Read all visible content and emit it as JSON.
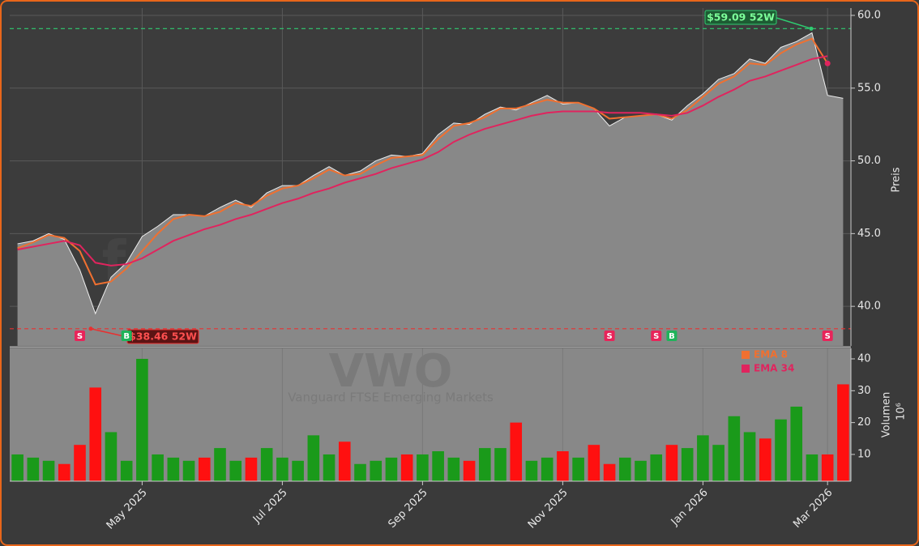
{
  "chart_data": [
    {
      "type": "area",
      "title": "VWO",
      "subtitle": "Vanguard FTSE Emerging Markets",
      "watermark": "forexsignale.trade",
      "categories": [
        null,
        null,
        null,
        null,
        null,
        null,
        null,
        null,
        "May 2025",
        null,
        null,
        null,
        null,
        null,
        null,
        null,
        null,
        "Jul 2025",
        null,
        null,
        null,
        null,
        null,
        null,
        null,
        null,
        "Sep 2025",
        null,
        null,
        null,
        null,
        null,
        null,
        null,
        null,
        "Nov 2025",
        null,
        null,
        null,
        null,
        null,
        null,
        null,
        null,
        "Jan 2026",
        null,
        null,
        null,
        null,
        null,
        null,
        null,
        "Mar 2026",
        null
      ],
      "values": [
        44.3,
        44.5,
        45.0,
        44.6,
        42.5,
        39.5,
        42.0,
        43.0,
        44.8,
        45.5,
        46.3,
        46.3,
        46.2,
        46.8,
        47.3,
        46.8,
        47.8,
        48.3,
        48.3,
        49.0,
        49.6,
        49.0,
        49.3,
        50.0,
        50.4,
        50.3,
        50.5,
        51.8,
        52.6,
        52.5,
        53.2,
        53.7,
        53.5,
        54.0,
        54.5,
        53.9,
        54.0,
        53.6,
        52.4,
        53.0,
        53.1,
        53.2,
        52.8,
        53.8,
        54.6,
        55.6,
        56.0,
        57.0,
        56.7,
        57.8,
        58.2,
        58.8,
        54.5,
        54.3
      ],
      "color": "#888888",
      "series": [
        {
          "name": "EMA 8",
          "color": "#f07030",
          "values": [
            44.0,
            44.4,
            44.9,
            44.7,
            43.8,
            41.5,
            41.7,
            42.6,
            43.8,
            45.0,
            46.0,
            46.3,
            46.2,
            46.5,
            47.1,
            46.9,
            47.6,
            48.1,
            48.3,
            48.8,
            49.4,
            49.0,
            49.1,
            49.7,
            50.2,
            50.3,
            50.4,
            51.5,
            52.4,
            52.6,
            53.0,
            53.6,
            53.6,
            53.9,
            54.2,
            54.0,
            54.0,
            53.6,
            52.9,
            53.0,
            53.1,
            53.2,
            52.9,
            53.5,
            54.4,
            55.3,
            55.8,
            56.7,
            56.6,
            57.4,
            58.0,
            58.4,
            56.7,
            null
          ]
        },
        {
          "name": "EMA 34",
          "color": "#e0245e",
          "values": [
            43.9,
            44.1,
            44.3,
            44.5,
            44.2,
            43.0,
            42.8,
            42.9,
            43.3,
            43.9,
            44.5,
            44.9,
            45.3,
            45.6,
            46.0,
            46.3,
            46.7,
            47.1,
            47.4,
            47.8,
            48.1,
            48.5,
            48.8,
            49.1,
            49.5,
            49.8,
            50.1,
            50.6,
            51.3,
            51.8,
            52.2,
            52.5,
            52.8,
            53.1,
            53.3,
            53.4,
            53.4,
            53.4,
            53.3,
            53.3,
            53.3,
            53.2,
            53.1,
            53.3,
            53.8,
            54.4,
            54.9,
            55.5,
            55.8,
            56.2,
            56.6,
            57.0,
            57.2,
            null
          ]
        }
      ],
      "reference_lines": [
        {
          "value": 59.09,
          "label": "$59.09 52W",
          "color": "#2ecc71"
        },
        {
          "value": 38.46,
          "label": "$38.46 52W",
          "color": "#e83030"
        }
      ],
      "signals": [
        null,
        null,
        null,
        null,
        "S",
        null,
        null,
        "B",
        null,
        null,
        null,
        null,
        null,
        null,
        null,
        null,
        null,
        null,
        null,
        null,
        null,
        null,
        null,
        null,
        null,
        null,
        null,
        null,
        null,
        null,
        null,
        null,
        null,
        null,
        null,
        null,
        null,
        null,
        "S",
        null,
        null,
        "S",
        "B",
        null,
        null,
        null,
        null,
        null,
        null,
        null,
        null,
        null,
        "S",
        null
      ],
      "signal_colors": {
        "S": "#e8245a",
        "B": "#1fb35a"
      },
      "ylabel": "Preis",
      "ylim": [
        37.28,
        60.5
      ],
      "yticks": [
        {
          "value": 40,
          "label": "40.0"
        },
        {
          "value": 45,
          "label": "45.0"
        },
        {
          "value": 50,
          "label": "50.0"
        },
        {
          "value": 55,
          "label": "55.0"
        },
        {
          "value": 60,
          "label": "60.0"
        }
      ],
      "grid": true
    },
    {
      "type": "bar",
      "values": [
        10,
        9,
        8,
        7,
        13,
        31,
        17,
        8,
        40,
        10,
        9,
        8,
        9,
        12,
        8,
        9,
        12,
        9,
        8,
        16,
        10,
        14,
        7,
        8,
        9,
        10,
        10,
        11,
        9,
        8,
        12,
        12,
        20,
        8,
        9,
        11,
        9,
        13,
        7,
        9,
        8,
        10,
        13,
        12,
        16,
        13,
        22,
        17,
        15,
        21,
        25,
        10,
        10,
        32
      ],
      "up_color": "#1a9a1a",
      "down_color": "#ff1010",
      "ylabel": "Volumen",
      "scale_label": "10⁶",
      "ylim": [
        1.6,
        43.3
      ],
      "yticks": [
        10,
        20,
        30,
        40
      ],
      "legend": "upper right",
      "grid": true
    }
  ]
}
